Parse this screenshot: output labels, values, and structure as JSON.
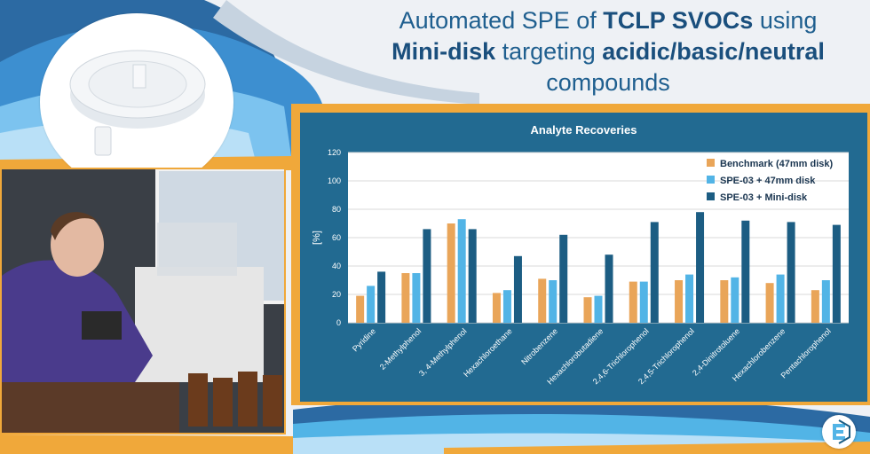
{
  "title": {
    "p1": "Automated SPE of ",
    "b1": "TCLP SVOCs",
    "p2": " using",
    "b2": "Mini-disk",
    "p3": " targeting ",
    "b3": "acidic/basic/neutral",
    "p4": "compounds"
  },
  "colors": {
    "orange": "#f0a83a",
    "panel_blue": "#226a91",
    "series_orange": "#e9a559",
    "series_light": "#52b4e6",
    "series_dark": "#1c5d83"
  },
  "icons": [
    "mini-disk-product-image",
    "lab-photo",
    "company-logo-icon"
  ],
  "chart_data": {
    "type": "bar",
    "title": "Analyte Recoveries",
    "ylabel": "[%]",
    "xlabel": "",
    "ylim": [
      0,
      120
    ],
    "yticks": [
      0,
      20,
      40,
      60,
      80,
      100,
      120
    ],
    "grid": true,
    "legend_position": "top-right",
    "categories": [
      "Pyridine",
      "2-Methylphenol",
      "3, 4-Methylphenol",
      "Hexachloroethane",
      "Nitrobenzene",
      "Hexachlorobutadiene",
      "2,4,6-Trichlorophenol",
      "2,4,5-Trichlorophenol",
      "2,4-Dinitrotoluene",
      "Hexachlorobenzene",
      "Pentachlorophenol"
    ],
    "series": [
      {
        "name": "Benchmark (47mm disk)",
        "values": [
          19,
          35,
          70,
          21,
          31,
          18,
          29,
          30,
          30,
          28,
          23
        ]
      },
      {
        "name": "SPE-03 + 47mm disk",
        "values": [
          26,
          35,
          73,
          23,
          30,
          19,
          29,
          34,
          32,
          34,
          30
        ]
      },
      {
        "name": "SPE-03 + Mini-disk",
        "values": [
          36,
          66,
          66,
          47,
          62,
          48,
          71,
          78,
          72,
          71,
          69
        ]
      }
    ]
  }
}
